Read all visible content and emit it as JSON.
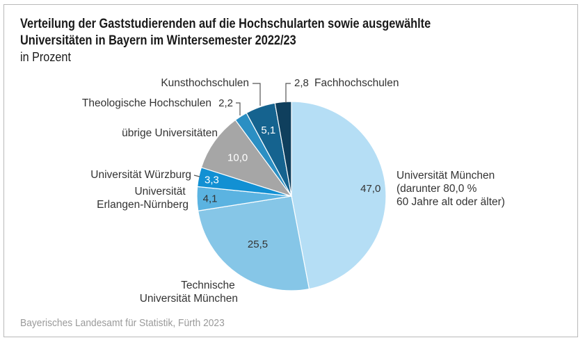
{
  "chart_data": {
    "type": "pie",
    "title": "Verteilung der Gaststudierenden auf die Hochschularten sowie ausgewählte Universitäten in Bayern im Wintersemester 2022/23",
    "title_lines": [
      "Verteilung der Gaststudierenden auf die Hochschularten sowie ausgewählte",
      "Universitäten in Bayern im Wintersemester 2022/23"
    ],
    "subtitle": "in Prozent",
    "unit": "%",
    "start_angle": "12 o'clock",
    "direction": "clockwise",
    "slices": [
      {
        "label": "Universität München (darunter 80,0 % 60 Jahre alt oder älter)",
        "label_lines": [
          "Universität München",
          "(darunter 80,0 %",
          "60 Jahre alt oder älter)"
        ],
        "value": 47.0,
        "value_text": "47,0",
        "color": "#b5def5",
        "value_color": "#333333",
        "value_inside": true
      },
      {
        "label": "Technische Universität München",
        "label_lines": [
          "Technische",
          "Universität München"
        ],
        "value": 25.5,
        "value_text": "25,5",
        "color": "#86c6e7",
        "value_color": "#333333",
        "value_inside": true
      },
      {
        "label": "Universität Erlangen-Nürnberg",
        "label_lines": [
          "Universität",
          "Erlangen-Nürnberg"
        ],
        "value": 4.1,
        "value_text": "4,1",
        "color": "#5bb3e1",
        "value_color": "#333333",
        "value_inside": true
      },
      {
        "label": "Universität Würzburg",
        "label_lines": [
          "Universität Würzburg"
        ],
        "value": 3.3,
        "value_text": "3,3",
        "color": "#1290d3",
        "value_color": "#ffffff",
        "value_inside": true
      },
      {
        "label": "übrige Universitäten",
        "label_lines": [
          "übrige Universitäten"
        ],
        "value": 10.0,
        "value_text": "10,0",
        "color": "#a6a6a6",
        "value_color": "#ffffff",
        "value_inside": true
      },
      {
        "label": "Theologische Hochschulen",
        "label_lines": [
          "Theologische Hochschulen"
        ],
        "value": 2.2,
        "value_text": "2,2",
        "color": "#2b8fc3",
        "value_color": "#333333",
        "value_inside": false
      },
      {
        "label": "Kunsthochschulen",
        "label_lines": [
          "Kunsthochschulen"
        ],
        "value": 5.1,
        "value_text": "5,1",
        "color": "#15638f",
        "value_color": "#ffffff",
        "value_inside": true
      },
      {
        "label": "Fachhochschulen",
        "label_lines": [
          "Fachhochschulen"
        ],
        "value": 2.8,
        "value_text": "2,8",
        "color": "#0f3f5d",
        "value_color": "#333333",
        "value_inside": false
      }
    ],
    "source": "Bayerisches Landesamt für Statistik, Fürth 2023"
  }
}
